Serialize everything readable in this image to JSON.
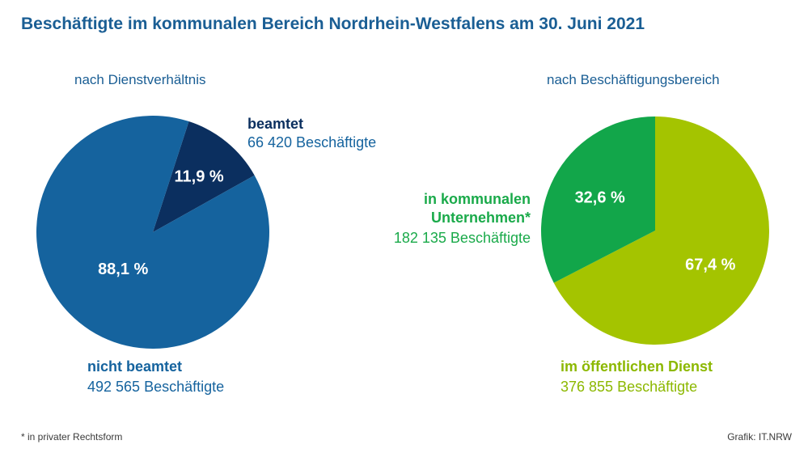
{
  "title": "Beschäftigte im kommunalen Bereich Nordrhein-Westfalens am 30. Juni 2021",
  "footnote": "*  in privater Rechtsform",
  "source": "Grafik: IT.NRW",
  "chart_data": [
    {
      "type": "pie",
      "title": "nach Dienstverhältnis",
      "slices": [
        {
          "label": "beamtet",
          "value": 66420,
          "value_text": "66 420 Beschäftigte",
          "percent": 11.9,
          "percent_text": "11,9 %",
          "color": "#0b2f5f"
        },
        {
          "label": "nicht beamtet",
          "value": 492565,
          "value_text": "492 565 Beschäftigte",
          "percent": 88.1,
          "percent_text": "88,1 %",
          "color": "#15639e"
        }
      ]
    },
    {
      "type": "pie",
      "title": "nach Beschäftigungsbereich",
      "slices": [
        {
          "label": "im öffentlichen Dienst",
          "value": 376855,
          "value_text": "376 855 Beschäftigte",
          "percent": 67.4,
          "percent_text": "67,4 %",
          "color": "#a4c400"
        },
        {
          "label_lines": [
            "in kommunalen",
            "Unternehmen*"
          ],
          "value": 182135,
          "value_text": "182 135 Beschäftigte",
          "percent": 32.6,
          "percent_text": "32,6 %",
          "color": "#12a64a"
        }
      ]
    }
  ]
}
